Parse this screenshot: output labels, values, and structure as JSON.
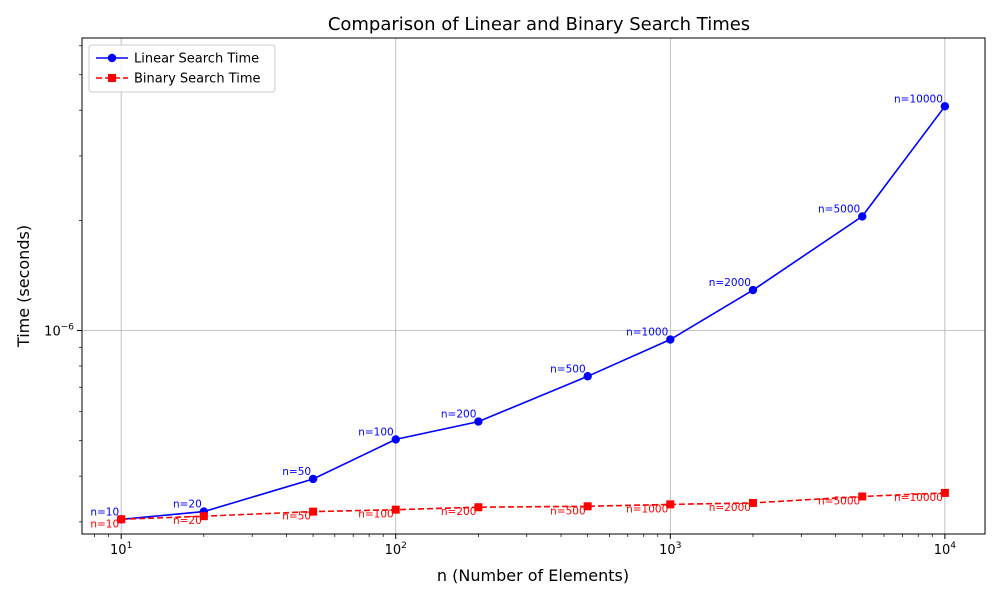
{
  "chart_data": {
    "type": "line",
    "title": "Comparison of Linear and Binary Search Times",
    "xlabel": "n (Number of Elements)",
    "ylabel": "Time (seconds)",
    "xscale": "log",
    "yscale": "log",
    "xlim": [
      7.2,
      14000
    ],
    "ylim": [
      2.78e-07,
      6.3e-06
    ],
    "grid": true,
    "legend_position": "top-left",
    "x": [
      10,
      20,
      50,
      100,
      200,
      500,
      1000,
      2000,
      5000,
      10000
    ],
    "x_ticks": [
      {
        "base": "10",
        "exp": "1",
        "value": 10
      },
      {
        "base": "10",
        "exp": "2",
        "value": 100
      },
      {
        "base": "10",
        "exp": "3",
        "value": 1000
      },
      {
        "base": "10",
        "exp": "4",
        "value": 10000
      }
    ],
    "y_ticks": [
      {
        "base": "10",
        "exp": "−6",
        "value": 1e-06
      }
    ],
    "series": [
      {
        "name": "Linear Search Time",
        "color": "#0000ff",
        "line_style": "solid",
        "marker": "circle",
        "values": [
          3.05e-07,
          3.2e-07,
          3.93e-07,
          5.04e-07,
          5.64e-07,
          7.5e-07,
          9.45e-07,
          1.29e-06,
          2.05e-06,
          4.1e-06
        ],
        "point_labels": [
          "n=10",
          "n=20",
          "n=50",
          "n=100",
          "n=200",
          "n=500",
          "n=1000",
          "n=2000",
          "n=5000",
          "n=10000"
        ]
      },
      {
        "name": "Binary Search Time",
        "color": "#ff0000",
        "line_style": "dashed",
        "marker": "square",
        "values": [
          3.05e-07,
          3.11e-07,
          3.2e-07,
          3.24e-07,
          3.29e-07,
          3.31e-07,
          3.35e-07,
          3.38e-07,
          3.52e-07,
          3.6e-07
        ],
        "point_labels": [
          "n=10",
          "n=20",
          "n=50",
          "n=100",
          "n=200",
          "n=500",
          "n=1000",
          "n=2000",
          "n=5000",
          "n=10000"
        ]
      }
    ]
  }
}
